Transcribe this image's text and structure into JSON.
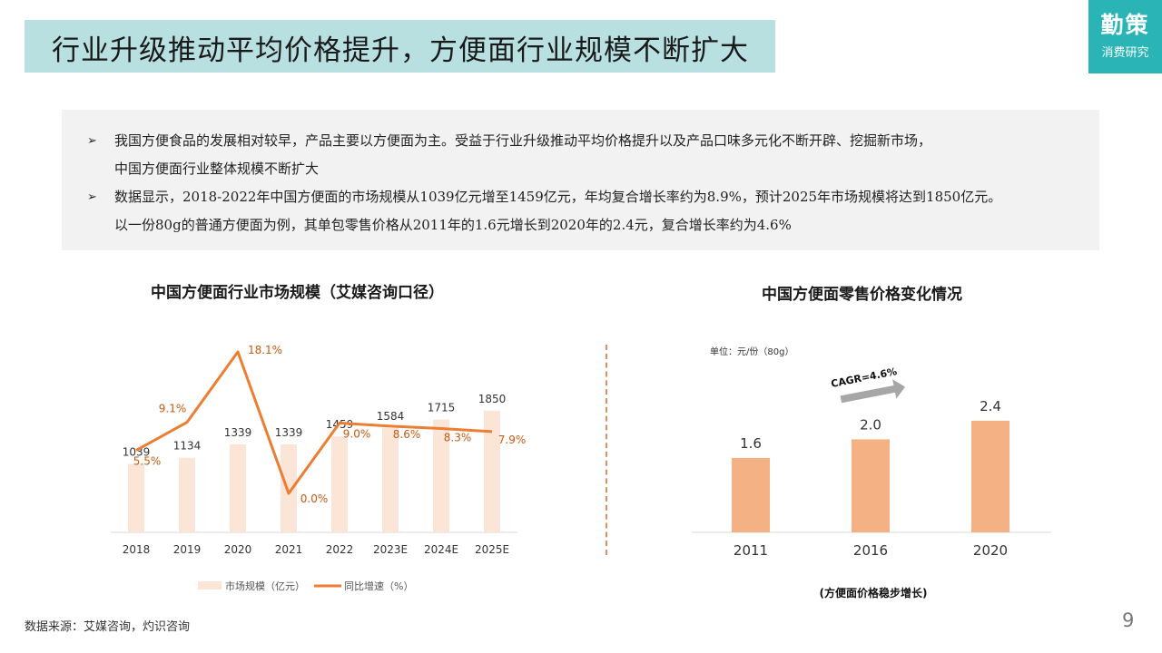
{
  "header": {
    "title": "行业升级推动平均价格提升，方便面行业规模不断扩大"
  },
  "logo": {
    "main": "勤策",
    "sub": "消费研究"
  },
  "bullets": [
    {
      "marker": "➢",
      "lines": [
        "我国方便食品的发展相对较早，产品主要以方便面为主。受益于行业升级推动平均价格提升以及产品口味多元化不断开辟、挖掘新市场，",
        "中国方便面行业整体规模不断扩大"
      ]
    },
    {
      "marker": "➢",
      "lines": [
        "数据显示，2018-2022年中国方便面的市场规模从1039亿元增至1459亿元，年均复合增长率约为8.9%，预计2025年市场规模将达到1850亿元。",
        "以一份80g的普通方便面为例，其单包零售价格从2011年的1.6元增长到2020年的2.4元，复合增长率约为4.6%"
      ]
    }
  ],
  "chart_data": [
    {
      "type": "bar",
      "title": "中国方便面行业市场规模（艾媒咨询口径）",
      "categories": [
        "2018",
        "2019",
        "2020",
        "2021",
        "2022",
        "2023E",
        "2024E",
        "2025E"
      ],
      "series": [
        {
          "name": "市场规模（亿元）",
          "type": "bar",
          "values": [
            1039,
            1134,
            1339,
            1339,
            1459,
            1584,
            1715,
            1850
          ],
          "color": "#fbe5d6"
        },
        {
          "name": "同比增速（%）",
          "type": "line",
          "values": [
            5.5,
            9.1,
            18.1,
            0.0,
            9.0,
            8.6,
            8.3,
            7.9
          ],
          "color": "#ed7d31"
        }
      ],
      "bar_labels": [
        "1039",
        "1134",
        "1339",
        "1339",
        "1459",
        "1584",
        "1715",
        "1850"
      ],
      "line_labels": [
        "5.5%",
        "9.1%",
        "18.1%",
        "0.0%",
        "9.0%",
        "8.6%",
        "8.3%",
        "7.9%"
      ],
      "ylim_bar": [
        0,
        3000
      ],
      "ylim_line": [
        0,
        20
      ],
      "legend": "bottom",
      "grid": false
    },
    {
      "type": "bar",
      "title": "中国方便面零售价格变化情况",
      "unit": "单位：元/份（80g）",
      "categories": [
        "2011",
        "2016",
        "2020"
      ],
      "values": [
        1.6,
        2.0,
        2.4
      ],
      "labels": [
        "1.6",
        "2.0",
        "2.4"
      ],
      "color": "#f4b183",
      "ylim": [
        0,
        3.5
      ],
      "annotation": "CAGR=4.6%",
      "caption": "(方便面价格稳步增长)",
      "grid": false
    }
  ],
  "footer": {
    "source": "数据来源：艾媒咨询，灼识咨询",
    "page": "9"
  },
  "colors": {
    "accent": "#2bb4b5",
    "title_bg": "#b9e0e1",
    "bar_light": "#fbe5d6",
    "line": "#ed7d31",
    "bar_price": "#f4b183",
    "arrow": "#a6a6a6"
  }
}
